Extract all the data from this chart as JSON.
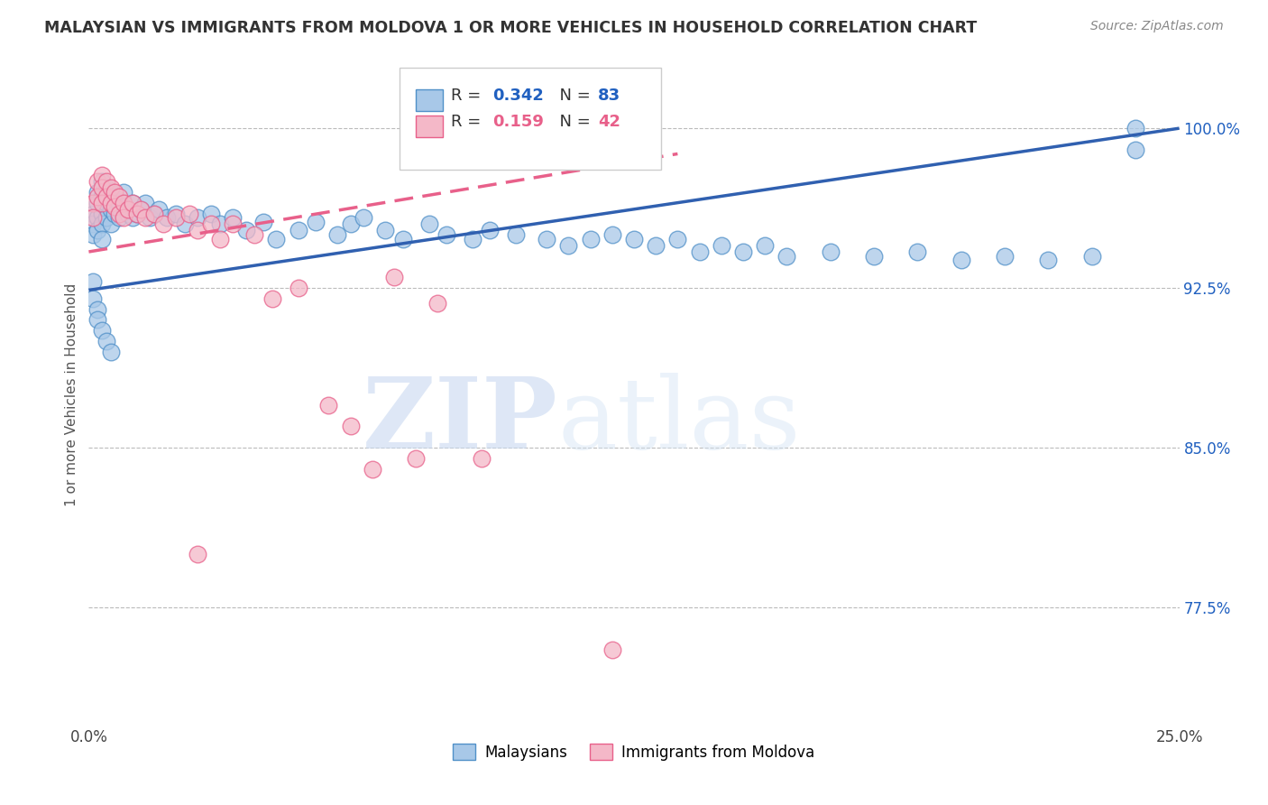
{
  "title": "MALAYSIAN VS IMMIGRANTS FROM MOLDOVA 1 OR MORE VEHICLES IN HOUSEHOLD CORRELATION CHART",
  "source": "Source: ZipAtlas.com",
  "ylabel": "1 or more Vehicles in Household",
  "ytick_labels": [
    "77.5%",
    "85.0%",
    "92.5%",
    "100.0%"
  ],
  "ytick_values": [
    0.775,
    0.85,
    0.925,
    1.0
  ],
  "xmin": 0.0,
  "xmax": 0.25,
  "ymin": 0.72,
  "ymax": 1.03,
  "legend_r1": "0.342",
  "legend_n1": "83",
  "legend_r2": "0.159",
  "legend_n2": "42",
  "color_blue": "#a8c8e8",
  "color_pink": "#f4b8c8",
  "edge_blue": "#5090c8",
  "edge_pink": "#e8608a",
  "line_blue": "#3060b0",
  "line_pink": "#e8608a",
  "watermark_zip": "ZIP",
  "watermark_atlas": "atlas",
  "blue_x": [
    0.001,
    0.001,
    0.001,
    0.002,
    0.002,
    0.002,
    0.002,
    0.003,
    0.003,
    0.003,
    0.003,
    0.003,
    0.004,
    0.004,
    0.004,
    0.005,
    0.005,
    0.005,
    0.006,
    0.006,
    0.007,
    0.007,
    0.008,
    0.008,
    0.009,
    0.01,
    0.01,
    0.011,
    0.012,
    0.013,
    0.014,
    0.015,
    0.016,
    0.018,
    0.02,
    0.022,
    0.025,
    0.028,
    0.03,
    0.033,
    0.036,
    0.04,
    0.043,
    0.048,
    0.052,
    0.057,
    0.06,
    0.063,
    0.068,
    0.072,
    0.078,
    0.082,
    0.088,
    0.092,
    0.098,
    0.105,
    0.11,
    0.115,
    0.12,
    0.125,
    0.13,
    0.135,
    0.14,
    0.145,
    0.15,
    0.155,
    0.16,
    0.17,
    0.18,
    0.19,
    0.2,
    0.21,
    0.22,
    0.23,
    0.24,
    0.001,
    0.001,
    0.002,
    0.002,
    0.003,
    0.004,
    0.005,
    0.24
  ],
  "blue_y": [
    0.96,
    0.955,
    0.95,
    0.97,
    0.965,
    0.958,
    0.952,
    0.975,
    0.968,
    0.96,
    0.955,
    0.948,
    0.972,
    0.965,
    0.958,
    0.97,
    0.962,
    0.955,
    0.968,
    0.96,
    0.965,
    0.958,
    0.97,
    0.963,
    0.96,
    0.965,
    0.958,
    0.96,
    0.962,
    0.965,
    0.958,
    0.96,
    0.962,
    0.958,
    0.96,
    0.955,
    0.958,
    0.96,
    0.955,
    0.958,
    0.952,
    0.956,
    0.948,
    0.952,
    0.956,
    0.95,
    0.955,
    0.958,
    0.952,
    0.948,
    0.955,
    0.95,
    0.948,
    0.952,
    0.95,
    0.948,
    0.945,
    0.948,
    0.95,
    0.948,
    0.945,
    0.948,
    0.942,
    0.945,
    0.942,
    0.945,
    0.94,
    0.942,
    0.94,
    0.942,
    0.938,
    0.94,
    0.938,
    0.94,
    1.0,
    0.928,
    0.92,
    0.915,
    0.91,
    0.905,
    0.9,
    0.895,
    0.99
  ],
  "pink_x": [
    0.001,
    0.001,
    0.002,
    0.002,
    0.003,
    0.003,
    0.003,
    0.004,
    0.004,
    0.005,
    0.005,
    0.006,
    0.006,
    0.007,
    0.007,
    0.008,
    0.008,
    0.009,
    0.01,
    0.011,
    0.012,
    0.013,
    0.015,
    0.017,
    0.02,
    0.023,
    0.025,
    0.028,
    0.03,
    0.033,
    0.038,
    0.042,
    0.048,
    0.055,
    0.06,
    0.065,
    0.07,
    0.075,
    0.08,
    0.09,
    0.12,
    0.025
  ],
  "pink_y": [
    0.965,
    0.958,
    0.975,
    0.968,
    0.978,
    0.972,
    0.965,
    0.975,
    0.968,
    0.972,
    0.965,
    0.97,
    0.963,
    0.968,
    0.96,
    0.965,
    0.958,
    0.962,
    0.965,
    0.96,
    0.962,
    0.958,
    0.96,
    0.955,
    0.958,
    0.96,
    0.952,
    0.955,
    0.948,
    0.955,
    0.95,
    0.92,
    0.925,
    0.87,
    0.86,
    0.84,
    0.93,
    0.845,
    0.918,
    0.845,
    0.755,
    0.8
  ],
  "blue_line_x0": 0.0,
  "blue_line_x1": 0.25,
  "blue_line_y0": 0.924,
  "blue_line_y1": 1.0,
  "pink_line_x0": 0.0,
  "pink_line_x1": 0.135,
  "pink_line_y0": 0.942,
  "pink_line_y1": 0.988
}
